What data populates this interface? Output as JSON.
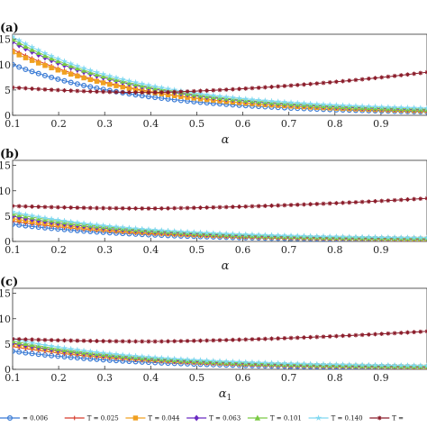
{
  "chart_data": [
    {
      "panel_label": "(a)",
      "type": "line",
      "xlabel": "α",
      "xlabel_sub": "",
      "xlim": [
        0.1,
        1.0
      ],
      "ylim": [
        0,
        16
      ],
      "xticks": [
        0.1,
        0.2,
        0.3,
        0.4,
        0.5,
        0.6,
        0.7,
        0.8,
        0.9
      ],
      "yticks": [
        0,
        5,
        10,
        15
      ],
      "series": [
        {
          "legend_index": 0,
          "y_start": 10.0,
          "y_end": 0.3
        },
        {
          "legend_index": 1,
          "y_start": 13.0,
          "y_end": 0.3
        },
        {
          "legend_index": 2,
          "y_start": 12.5,
          "y_end": 0.4
        },
        {
          "legend_index": 3,
          "y_start": 14.5,
          "y_end": 0.5
        },
        {
          "legend_index": 4,
          "y_start": 15.0,
          "y_end": 0.6
        },
        {
          "legend_index": 5,
          "y_start": 15.5,
          "y_end": 0.8
        },
        {
          "legend_index": 6,
          "y_start": 5.5,
          "y_min": 4.5,
          "y_end": 8.5
        }
      ]
    },
    {
      "panel_label": "(b)",
      "type": "line",
      "xlabel": "α",
      "xlabel_sub": "",
      "xlim": [
        0.1,
        1.0
      ],
      "ylim": [
        0,
        16
      ],
      "xticks": [
        0.1,
        0.2,
        0.3,
        0.4,
        0.5,
        0.6,
        0.7,
        0.8,
        0.9
      ],
      "yticks": [
        0,
        5,
        10,
        15
      ],
      "series": [
        {
          "legend_index": 0,
          "y_start": 3.4,
          "y_end": 0.2
        },
        {
          "legend_index": 1,
          "y_start": 4.0,
          "y_end": 0.25
        },
        {
          "legend_index": 2,
          "y_start": 4.5,
          "y_end": 0.3
        },
        {
          "legend_index": 3,
          "y_start": 5.0,
          "y_end": 0.35
        },
        {
          "legend_index": 4,
          "y_start": 5.5,
          "y_end": 0.4
        },
        {
          "legend_index": 5,
          "y_start": 5.8,
          "y_end": 0.5
        },
        {
          "legend_index": 6,
          "y_start": 7.0,
          "y_min": 6.5,
          "y_end": 8.5
        }
      ]
    },
    {
      "panel_label": "(c)",
      "type": "line",
      "xlabel": "α",
      "xlabel_sub": "1",
      "xlim": [
        0.1,
        1.0
      ],
      "ylim": [
        0,
        16
      ],
      "xticks": [
        0.1,
        0.2,
        0.3,
        0.4,
        0.5,
        0.6,
        0.7,
        0.8,
        0.9
      ],
      "yticks": [
        0,
        5,
        10,
        15
      ],
      "series": [
        {
          "legend_index": 0,
          "y_start": 3.6,
          "y_end": 0.2
        },
        {
          "legend_index": 1,
          "y_start": 4.5,
          "y_end": 0.25
        },
        {
          "legend_index": 2,
          "y_start": 5.0,
          "y_end": 0.3
        },
        {
          "legend_index": 3,
          "y_start": 5.2,
          "y_end": 0.35
        },
        {
          "legend_index": 4,
          "y_start": 5.6,
          "y_end": 0.4
        },
        {
          "legend_index": 5,
          "y_start": 6.0,
          "y_end": 0.5
        },
        {
          "legend_index": 6,
          "y_start": 6.0,
          "y_min": 5.5,
          "y_end": 7.5
        }
      ]
    }
  ],
  "legend": {
    "placement": "bottom",
    "entries": [
      {
        "label": "= 0.006",
        "color": "#3a7bd5",
        "marker": "circle"
      },
      {
        "label": "T = 0.025",
        "color": "#d63a2a",
        "marker": "plus"
      },
      {
        "label": "T = 0.044",
        "color": "#f0a020",
        "marker": "square"
      },
      {
        "label": "T = 0.063",
        "color": "#6a2bc2",
        "marker": "diamond"
      },
      {
        "label": "T = 0.101",
        "color": "#7ac943",
        "marker": "triangle"
      },
      {
        "label": "T = 0.140",
        "color": "#7fd8f0",
        "marker": "star"
      },
      {
        "label": "T = ",
        "color": "#8b1c2a",
        "marker": "asterisk"
      }
    ]
  }
}
